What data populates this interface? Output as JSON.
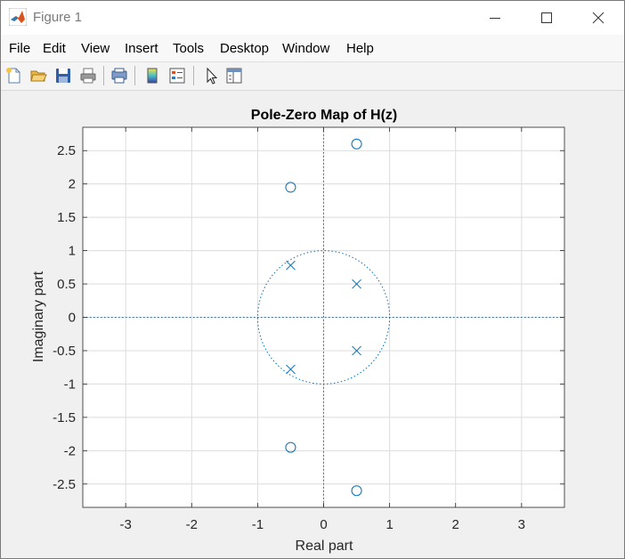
{
  "window": {
    "title": "Figure 1"
  },
  "menu": [
    "File",
    "Edit",
    "View",
    "Insert",
    "Tools",
    "Desktop",
    "Window",
    "Help"
  ],
  "toolbar": {
    "buttons": [
      "new-figure",
      "open-file",
      "save",
      "print",
      "print-preview",
      "insert-colorbar",
      "insert-legend",
      "edit-plot",
      "open-property-inspector"
    ]
  },
  "colors": {
    "marker": "#0072bd",
    "axes_bg": "#ffffff",
    "grid": "#dcdcdc"
  },
  "chart_data": {
    "type": "scatter",
    "title": "Pole-Zero Map of H(z)",
    "xlabel": "Real part",
    "ylabel": "Imaginary part",
    "xlim": [
      -3.65,
      3.65
    ],
    "ylim": [
      -2.85,
      2.85
    ],
    "xticks": [
      -3,
      -2,
      -1,
      0,
      1,
      2,
      3
    ],
    "xtick_labels": [
      "-3",
      "-2",
      "-1",
      "0",
      "1",
      "2",
      "3"
    ],
    "yticks": [
      2.5,
      2,
      1.5,
      1,
      0.5,
      0,
      -0.5,
      -1,
      -1.5,
      -2,
      -2.5
    ],
    "ytick_labels": [
      "2.5",
      "2",
      "1.5",
      "1",
      "0.5",
      "0",
      "-0.5",
      "-1",
      "-1.5",
      "-2",
      "-2.5"
    ],
    "grid": true,
    "unit_circle": true,
    "zeros": [
      {
        "x": 0.5,
        "y": 2.6
      },
      {
        "x": -0.5,
        "y": 1.95
      },
      {
        "x": -0.5,
        "y": -1.95
      },
      {
        "x": 0.5,
        "y": -2.6
      }
    ],
    "poles": [
      {
        "x": -0.5,
        "y": 0.78
      },
      {
        "x": 0.5,
        "y": 0.5
      },
      {
        "x": 0.5,
        "y": -0.5
      },
      {
        "x": -0.5,
        "y": -0.78
      }
    ]
  }
}
